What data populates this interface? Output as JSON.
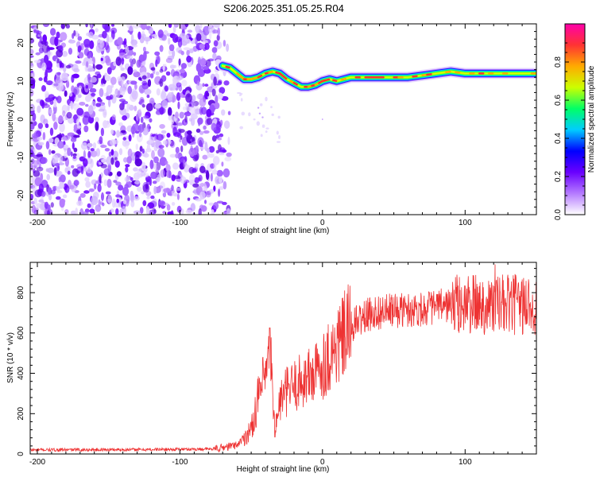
{
  "figure": {
    "title": "S206.2025.351.05.25.R04"
  },
  "chart_data": [
    {
      "type": "heatmap",
      "xlabel": "Height of straight line (km)",
      "ylabel": "Frequency (Hz)",
      "xlim": [
        -205,
        150
      ],
      "ylim": [
        -25,
        25
      ],
      "x_ticks": [
        -200,
        -100,
        0,
        100
      ],
      "y_ticks": [
        -20,
        -10,
        0,
        10,
        20
      ],
      "noise_region_x": [
        -205,
        -65
      ],
      "signal_track": {
        "x": [
          -70,
          -65,
          -60,
          -55,
          -50,
          -45,
          -40,
          -35,
          -30,
          -25,
          -20,
          -15,
          -10,
          -5,
          0,
          5,
          10,
          20,
          30,
          40,
          50,
          60,
          70,
          80,
          90,
          100,
          110,
          120,
          130,
          140,
          150
        ],
        "freq": [
          14,
          13.5,
          12,
          10.5,
          10.5,
          11,
          12,
          12.5,
          12,
          10.5,
          9.5,
          8.5,
          8.5,
          9,
          10,
          10.5,
          10,
          11,
          11,
          11,
          11,
          11,
          11.5,
          12,
          12.5,
          12,
          12,
          12,
          12,
          12,
          12
        ]
      },
      "colorbar": {
        "label": "Normalized spectral amplitude",
        "range": [
          0,
          1
        ],
        "ticks": [
          "0.0",
          "0.2",
          "0.4",
          "0.6",
          "0.8"
        ],
        "colors": [
          "#ffffff",
          "#b57bff",
          "#6a00ff",
          "#0000ff",
          "#00ccff",
          "#00ff66",
          "#ccff00",
          "#ffaa00",
          "#ff3333",
          "#ff00aa"
        ]
      }
    },
    {
      "type": "line",
      "xlabel": "Height of straight line (km)",
      "ylabel": "SNR (10 * v/v)",
      "xlim": [
        -205,
        150
      ],
      "ylim": [
        0,
        950
      ],
      "x_ticks": [
        -200,
        -100,
        0,
        100
      ],
      "y_ticks": [
        0,
        200,
        400,
        600,
        800
      ],
      "color": "#ee3333",
      "trend": {
        "x": [
          -205,
          -120,
          -75,
          -60,
          -50,
          -45,
          -40,
          -36,
          -35,
          -33,
          -30,
          -25,
          -15,
          -5,
          0,
          5,
          10,
          15,
          20,
          25,
          35,
          50,
          70,
          90,
          110,
          130,
          150
        ],
        "y": [
          20,
          22,
          25,
          45,
          120,
          280,
          380,
          480,
          250,
          120,
          260,
          310,
          360,
          400,
          440,
          490,
          530,
          580,
          630,
          660,
          700,
          710,
          720,
          740,
          740,
          740,
          740
        ]
      },
      "spike": {
        "x": -37,
        "y": 625
      },
      "max_point": {
        "x": 121,
        "y": 940
      }
    }
  ]
}
